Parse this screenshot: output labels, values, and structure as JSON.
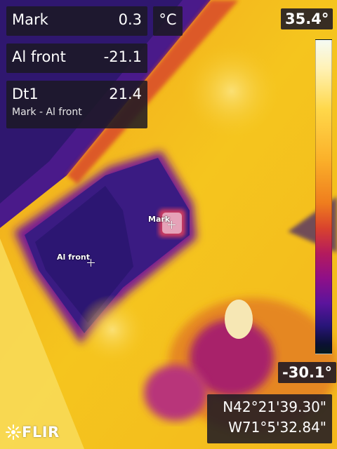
{
  "measurements": {
    "mark": {
      "label": "Mark",
      "value": "0.3"
    },
    "al_front": {
      "label": "Al front",
      "value": "-21.1"
    },
    "dt1": {
      "label": "Dt1",
      "value": "21.4",
      "formula": "Mark  - Al front"
    }
  },
  "unit": "°C",
  "scale": {
    "max": "35.4°",
    "min": "-30.1°"
  },
  "gps": {
    "lat": "N42°21'39.30\"",
    "lon": "W71°5'32.84\""
  },
  "spots": {
    "mark_label": "Mark",
    "al_front_label": "Al front"
  },
  "logo": {
    "text": "FLIR"
  },
  "icons": {
    "crosshair": "crosshair-icon",
    "logo": "flir-logo-icon"
  },
  "colors": {
    "hot": "#f5fbf4",
    "warm": "#f3c11c",
    "mid": "#ef7d1e",
    "cool": "#8f0f88",
    "cold": "#29157a",
    "overlay": "#1c1824"
  }
}
